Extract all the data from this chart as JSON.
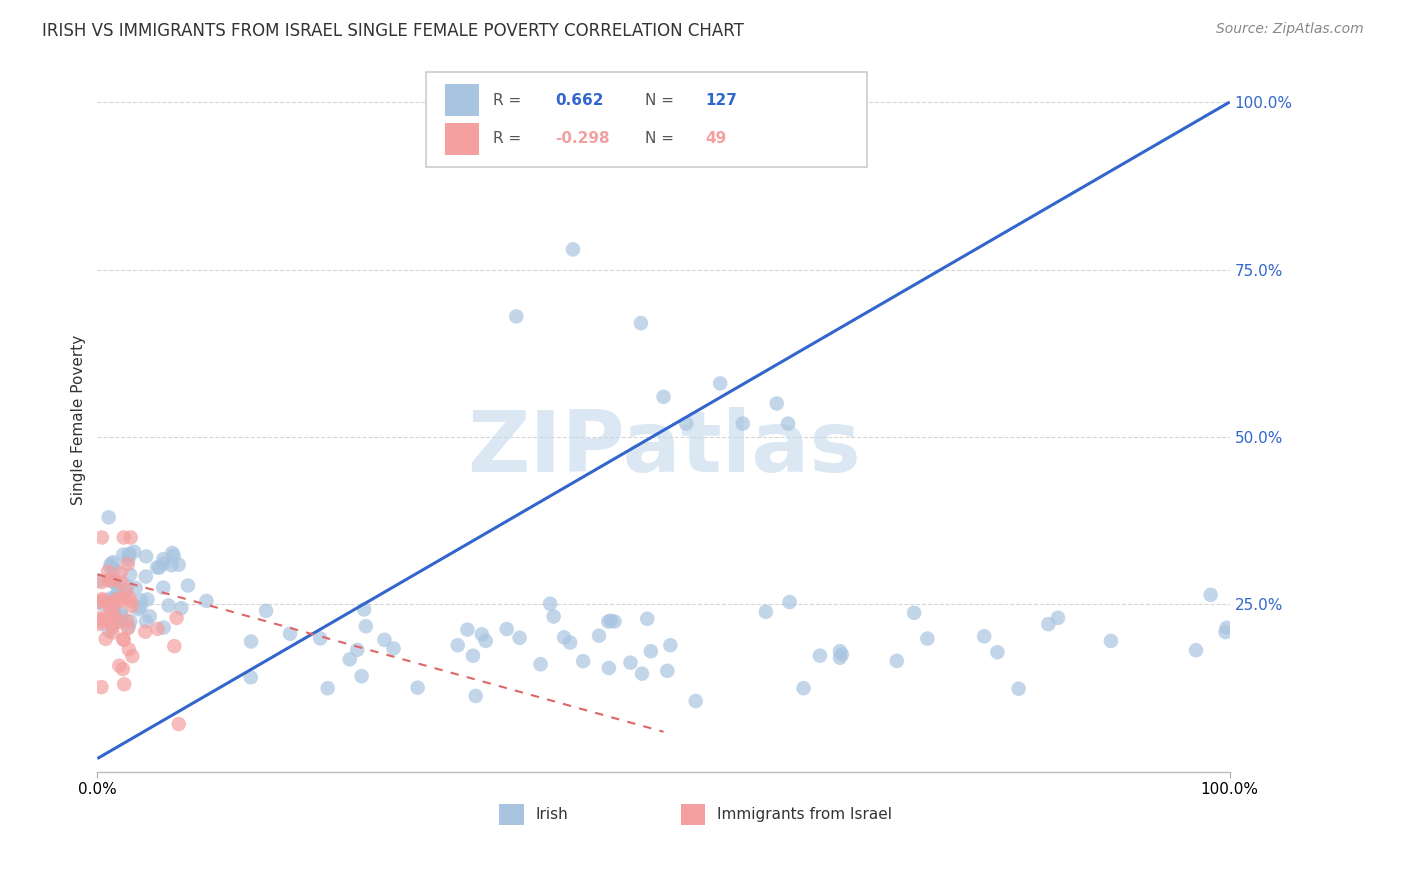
{
  "title": "IRISH VS IMMIGRANTS FROM ISRAEL SINGLE FEMALE POVERTY CORRELATION CHART",
  "source": "Source: ZipAtlas.com",
  "ylabel": "Single Female Poverty",
  "watermark": "ZIPatlas",
  "legend_irish": "Irish",
  "legend_israel": "Immigrants from Israel",
  "r_irish": 0.662,
  "n_irish": 127,
  "r_israel": -0.298,
  "n_israel": 49,
  "xlim": [
    0.0,
    1.0
  ],
  "ylim": [
    0.0,
    1.05
  ],
  "yticks": [
    0.25,
    0.5,
    0.75,
    1.0
  ],
  "ytick_labels": [
    "25.0%",
    "50.0%",
    "75.0%",
    "100.0%"
  ],
  "grid_color": "#cccccc",
  "blue_color": "#a8c4e0",
  "pink_color": "#f4a0a0",
  "blue_line_color": "#3366cc",
  "pink_line_color": "#dd6666",
  "bg_color": "#ffffff",
  "watermark_color": "#c5d8ed",
  "title_color": "#333333",
  "source_color": "#888888",
  "right_axis_color": "#3366cc"
}
